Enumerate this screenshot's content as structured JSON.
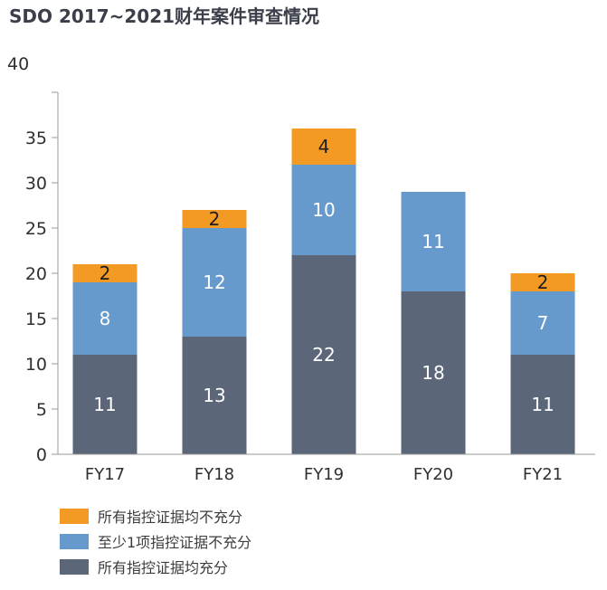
{
  "chart_data": {
    "type": "bar",
    "stacked": true,
    "title": "SDO 2017~2021财年案件审查情况",
    "xlabel": "",
    "ylabel": "",
    "ylim": [
      0,
      40
    ],
    "yticks": [
      0,
      5,
      10,
      15,
      20,
      25,
      30,
      35,
      40
    ],
    "grid": false,
    "legend_position": "bottom-left",
    "categories": [
      "FY17",
      "FY18",
      "FY19",
      "FY20",
      "FY21"
    ],
    "series": [
      {
        "name": "所有指控证据均充分",
        "color": "#5b6679",
        "values": [
          11,
          13,
          22,
          18,
          11
        ]
      },
      {
        "name": "至少1项指控证据不充分",
        "color": "#6699cc",
        "values": [
          8,
          12,
          10,
          11,
          7
        ]
      },
      {
        "name": "所有指控证据均不充分",
        "color": "#f29a23",
        "values": [
          2,
          2,
          4,
          null,
          2
        ]
      }
    ],
    "legend_order": [
      2,
      1,
      0
    ]
  }
}
